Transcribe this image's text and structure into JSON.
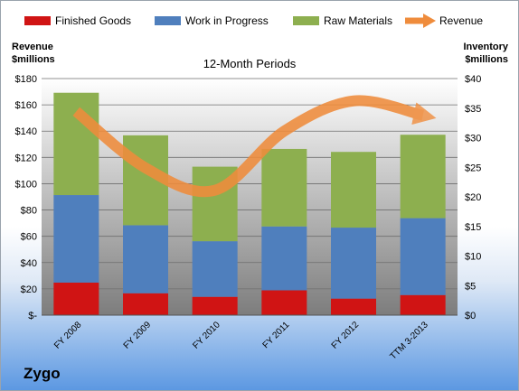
{
  "chart_data": {
    "type": "bar",
    "title": "12-Month Periods",
    "company": "Zygo",
    "left_axis_label": [
      "Revenue",
      "$millions"
    ],
    "right_axis_label": [
      "Inventory",
      "$millions"
    ],
    "categories": [
      "FY 2008",
      "FY 2009",
      "FY 2010",
      "FY 2011",
      "FY 2012",
      "TTM 3-2013"
    ],
    "left_axis": {
      "ylim": [
        0,
        180
      ],
      "ticks": [
        0,
        20,
        40,
        60,
        80,
        100,
        120,
        140,
        160,
        180
      ],
      "tick_labels": [
        "$-",
        "$20",
        "$40",
        "$60",
        "$80",
        "$100",
        "$120",
        "$140",
        "$160",
        "$180"
      ]
    },
    "right_axis": {
      "ylim": [
        0,
        40
      ],
      "ticks": [
        0,
        5,
        10,
        15,
        20,
        25,
        30,
        35,
        40
      ],
      "tick_labels": [
        "$0",
        "$5",
        "$10",
        "$15",
        "$20",
        "$25",
        "$30",
        "$35",
        "$40"
      ]
    },
    "stacked_series": [
      {
        "name": "Finished Goods",
        "color": "#d01414",
        "values": [
          5.5,
          3.7,
          3.1,
          4.2,
          2.8,
          3.4
        ]
      },
      {
        "name": "Work in Progress",
        "color": "#4f7fbd",
        "values": [
          14.8,
          11.5,
          9.4,
          10.8,
          12.0,
          13.0
        ]
      },
      {
        "name": "Raw Materials",
        "color": "#8daf4f",
        "values": [
          17.3,
          15.2,
          12.6,
          13.1,
          12.8,
          14.1
        ]
      }
    ],
    "line_series": {
      "name": "Revenue",
      "color": "#ef8c3c",
      "values": [
        155,
        112,
        95,
        140,
        163,
        152
      ]
    },
    "grid": true,
    "legend_position": "top"
  }
}
